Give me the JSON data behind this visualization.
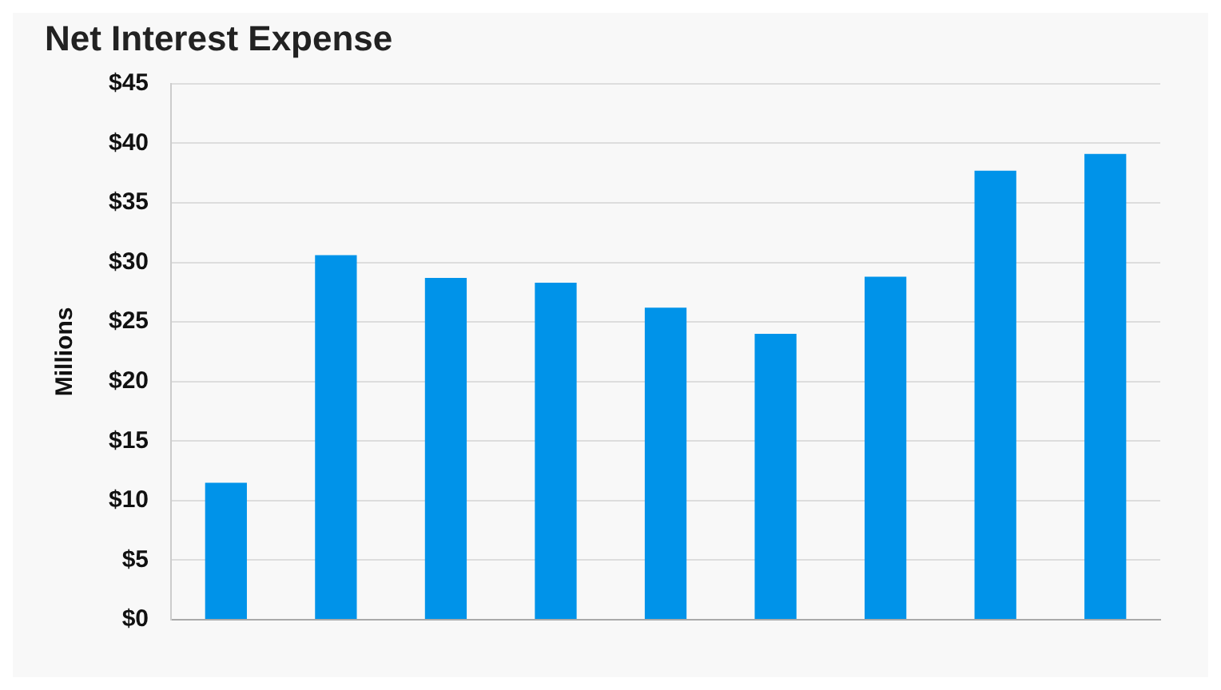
{
  "chart_data": {
    "type": "bar",
    "title": "Net Interest Expense",
    "ylabel": "Millions",
    "categories": [
      null,
      null,
      null,
      null,
      null,
      null,
      null,
      null,
      null
    ],
    "values": [
      11.5,
      30.6,
      28.7,
      28.3,
      26.2,
      24.0,
      28.8,
      37.7,
      39.1
    ],
    "color": "#0093e9",
    "ylim": [
      0,
      45
    ],
    "yticks": [
      {
        "value": 0,
        "label": "$0"
      },
      {
        "value": 5,
        "label": "$5"
      },
      {
        "value": 10,
        "label": "$10"
      },
      {
        "value": 15,
        "label": "$15"
      },
      {
        "value": 20,
        "label": "$20"
      },
      {
        "value": 25,
        "label": "$25"
      },
      {
        "value": 30,
        "label": "$30"
      },
      {
        "value": 35,
        "label": "$35"
      },
      {
        "value": 40,
        "label": "$40"
      },
      {
        "value": 45,
        "label": "$45"
      }
    ],
    "grid": "y"
  }
}
